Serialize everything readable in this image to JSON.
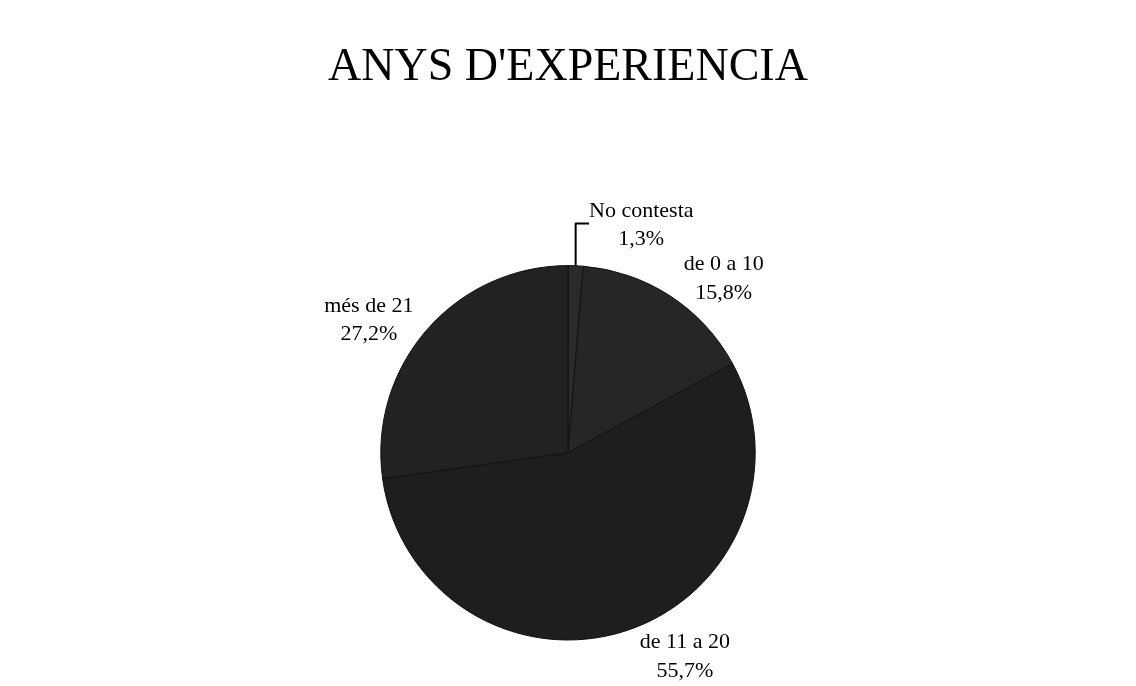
{
  "chart_data": {
    "type": "pie",
    "title": "ANYS D'EXPERIENCIA",
    "categories": [
      "No contesta",
      "de 0 a 10",
      "de 11 a 20",
      "més de 21"
    ],
    "values": [
      1.3,
      15.8,
      55.7,
      27.2
    ],
    "value_labels": [
      "1,3%",
      "15,8%",
      "55,7%",
      "27,2%"
    ],
    "colors": [
      "#2a2a2a",
      "#262626",
      "#1e1e1e",
      "#222222"
    ],
    "legend": false
  }
}
